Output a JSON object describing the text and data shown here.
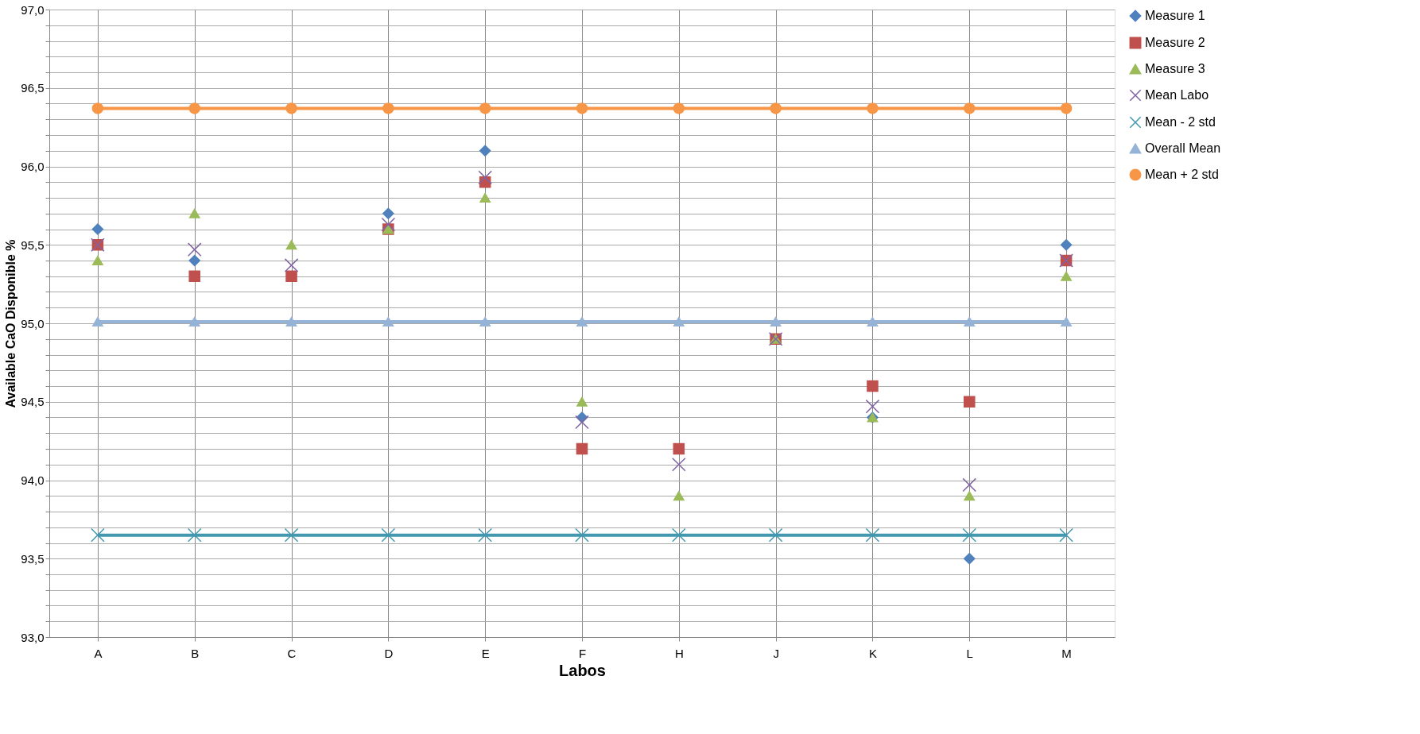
{
  "chart_data": {
    "type": "scatter",
    "xlabel": "Labos",
    "ylabel": "Available CaO Disponible %",
    "categories": [
      "A",
      "B",
      "C",
      "D",
      "E",
      "F",
      "H",
      "J",
      "K",
      "L",
      "M"
    ],
    "series": [
      {
        "name": "Measure 1",
        "marker": "diamond",
        "color": "#4f81bd",
        "values": [
          95.6,
          95.4,
          null,
          95.7,
          96.1,
          94.4,
          null,
          null,
          94.4,
          93.5,
          95.5
        ]
      },
      {
        "name": "Measure 2",
        "marker": "square",
        "color": "#c0504d",
        "values": [
          95.5,
          95.3,
          95.3,
          95.6,
          95.9,
          94.2,
          94.2,
          94.9,
          94.6,
          94.5,
          95.4
        ]
      },
      {
        "name": "Measure 3",
        "marker": "triangle",
        "color": "#9bbb59",
        "values": [
          95.4,
          95.7,
          95.5,
          95.6,
          95.8,
          94.5,
          93.9,
          94.9,
          94.4,
          93.9,
          95.3
        ]
      },
      {
        "name": "Mean Labo",
        "marker": "cross",
        "color": "#8064a2",
        "values": [
          95.5,
          95.47,
          95.37,
          95.63,
          95.93,
          94.37,
          94.1,
          94.9,
          94.47,
          93.97,
          95.4
        ]
      },
      {
        "name": "Mean - 2 std",
        "type": "line",
        "marker": "cross",
        "color": "#4198af",
        "values": [
          93.65,
          93.65,
          93.65,
          93.65,
          93.65,
          93.65,
          93.65,
          93.65,
          93.65,
          93.65,
          93.65
        ]
      },
      {
        "name": "Overall Mean",
        "type": "line",
        "marker": "triangle",
        "color": "#95b3d7",
        "values": [
          95.01,
          95.01,
          95.01,
          95.01,
          95.01,
          95.01,
          95.01,
          95.01,
          95.01,
          95.01,
          95.01
        ]
      },
      {
        "name": "Mean + 2 std",
        "type": "line",
        "marker": "circle",
        "color": "#f79646",
        "values": [
          96.37,
          96.37,
          96.37,
          96.37,
          96.37,
          96.37,
          96.37,
          96.37,
          96.37,
          96.37,
          96.37
        ]
      }
    ],
    "ylim": [
      93.0,
      97.0
    ],
    "yticks": [
      {
        "value": 93.0,
        "label": "93,0"
      },
      {
        "value": 93.1,
        "label": null
      },
      {
        "value": 93.2,
        "label": null
      },
      {
        "value": 93.3,
        "label": null
      },
      {
        "value": 93.4,
        "label": null
      },
      {
        "value": 93.5,
        "label": "93,5"
      },
      {
        "value": 93.6,
        "label": null
      },
      {
        "value": 93.7,
        "label": null
      },
      {
        "value": 93.8,
        "label": null
      },
      {
        "value": 93.9,
        "label": null
      },
      {
        "value": 94.0,
        "label": "94,0"
      },
      {
        "value": 94.1,
        "label": null
      },
      {
        "value": 94.2,
        "label": null
      },
      {
        "value": 94.3,
        "label": null
      },
      {
        "value": 94.4,
        "label": null
      },
      {
        "value": 94.5,
        "label": "94,5"
      },
      {
        "value": 94.6,
        "label": null
      },
      {
        "value": 94.7,
        "label": null
      },
      {
        "value": 94.8,
        "label": null
      },
      {
        "value": 94.9,
        "label": null
      },
      {
        "value": 95.0,
        "label": "95,0"
      },
      {
        "value": 95.1,
        "label": null
      },
      {
        "value": 95.2,
        "label": null
      },
      {
        "value": 95.3,
        "label": null
      },
      {
        "value": 95.4,
        "label": null
      },
      {
        "value": 95.5,
        "label": "95,5"
      },
      {
        "value": 95.6,
        "label": null
      },
      {
        "value": 95.7,
        "label": null
      },
      {
        "value": 95.8,
        "label": null
      },
      {
        "value": 95.9,
        "label": null
      },
      {
        "value": 96.0,
        "label": "96,0"
      },
      {
        "value": 96.1,
        "label": null
      },
      {
        "value": 96.2,
        "label": null
      },
      {
        "value": 96.3,
        "label": null
      },
      {
        "value": 96.4,
        "label": null
      },
      {
        "value": 96.5,
        "label": "96,5"
      },
      {
        "value": 96.6,
        "label": null
      },
      {
        "value": 96.7,
        "label": null
      },
      {
        "value": 96.8,
        "label": null
      },
      {
        "value": 96.9,
        "label": null
      },
      {
        "value": 97.0,
        "label": "97,0"
      }
    ],
    "grid": true,
    "legend": "right",
    "line_style": "solid"
  }
}
